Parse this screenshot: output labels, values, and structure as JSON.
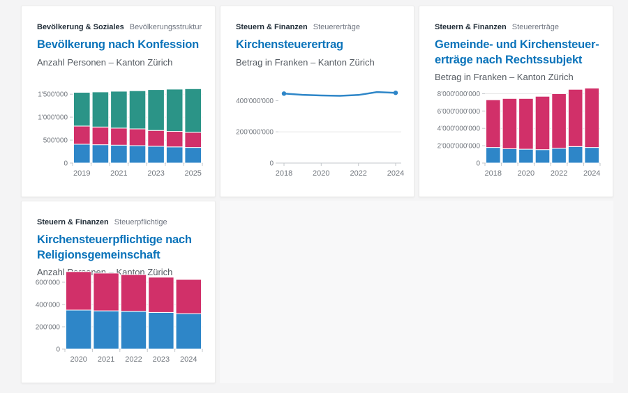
{
  "page": {
    "background": "#f4f4f5",
    "card_background": "#ffffff"
  },
  "colors": {
    "blue": "#2e86c8",
    "pink": "#d13069",
    "teal": "#2b9487",
    "title_blue": "#0a73ba",
    "category_text": "#232f3a",
    "muted_text": "#6f7580",
    "subtitle_text": "#545a61",
    "grid": "#e4e4e4",
    "axis": "#c3c7cb",
    "tick_text": "#71767d"
  },
  "cards": [
    {
      "category": "Bevölkerung & Soziales",
      "subcategory": "Bevölkerungsstruktur",
      "title_lines": [
        "Bevölkerung nach Konfession"
      ],
      "subtitle": "Anzahl Personen – Kanton Zürich"
    },
    {
      "category": "Steuern & Finanzen",
      "subcategory": "Steuererträge",
      "title_lines": [
        "Kirchensteuerertrag"
      ],
      "subtitle": "Betrag in Franken – Kanton Zürich"
    },
    {
      "category": "Steuern & Finanzen",
      "subcategory": "Steuererträge",
      "title_lines": [
        "Gemeinde- und Kirchensteuer-",
        "erträge nach Rechtssubjekt"
      ],
      "subtitle": "Betrag in Franken – Kanton Zürich"
    },
    {
      "category": "Steuern & Finanzen",
      "subcategory": "Steuerpflichtige",
      "title_lines": [
        "Kirchensteuerpflichtige nach",
        "Religionsgemeinschaft"
      ],
      "subtitle": "Anzahl Personen – Kanton Zürich"
    }
  ],
  "chart_data": [
    {
      "type": "bar",
      "stacked": true,
      "title": "Bevölkerung nach Konfession",
      "categories": [
        "2019",
        "2020",
        "2021",
        "2022",
        "2023",
        "2024",
        "2025"
      ],
      "x_ticks_shown": [
        "2019",
        "2021",
        "2023",
        "2025"
      ],
      "series": [
        {
          "name": "series_blue",
          "color": "blue",
          "values": [
            410000,
            400000,
            390000,
            378000,
            365000,
            352000,
            340000
          ]
        },
        {
          "name": "series_pink",
          "color": "pink",
          "values": [
            395000,
            385000,
            372000,
            365000,
            345000,
            338000,
            330000
          ]
        },
        {
          "name": "series_teal",
          "color": "teal",
          "values": [
            735000,
            765000,
            803000,
            832000,
            890000,
            920000,
            950000
          ]
        }
      ],
      "y_ticks": [
        {
          "v": 0,
          "label": "0",
          "grid": true
        },
        {
          "v": 500000,
          "label": "500'000",
          "grid": true
        },
        {
          "v": 1000000,
          "label": "1'000'000",
          "grid": true
        },
        {
          "v": 1500000,
          "label": "1'500'000",
          "grid": true
        }
      ],
      "ylim": [
        0,
        1700000
      ]
    },
    {
      "type": "line",
      "title": "Kirchensteuerertrag",
      "x": [
        "2018",
        "2019",
        "2020",
        "2021",
        "2022",
        "2023",
        "2024"
      ],
      "values": [
        445000000,
        437000000,
        433000000,
        431000000,
        436000000,
        455000000,
        450000000
      ],
      "series_color": "blue",
      "markers": "endpoints",
      "x_ticks_shown": [
        "2018",
        "2020",
        "2022",
        "2024"
      ],
      "y_ticks": [
        {
          "v": 0,
          "label": "0",
          "grid": true
        },
        {
          "v": 200000000,
          "label": "200'000'000",
          "grid": true
        },
        {
          "v": 400000000,
          "label": "400'000'000",
          "grid": false
        }
      ],
      "ylim": [
        0,
        500000000
      ]
    },
    {
      "type": "bar",
      "stacked": true,
      "title": "Gemeinde- und Kirchensteuererträge nach Rechtssubjekt",
      "categories": [
        "2018",
        "2019",
        "2020",
        "2021",
        "2022",
        "2023",
        "2024"
      ],
      "x_ticks_shown": [
        "2018",
        "2020",
        "2022",
        "2024"
      ],
      "series": [
        {
          "name": "series_blue",
          "color": "blue",
          "values": [
            1800000000,
            1650000000,
            1600000000,
            1550000000,
            1700000000,
            1900000000,
            1800000000
          ]
        },
        {
          "name": "series_pink",
          "color": "pink",
          "values": [
            5500000000,
            5800000000,
            5850000000,
            6150000000,
            6300000000,
            6600000000,
            6850000000
          ]
        }
      ],
      "y_ticks": [
        {
          "v": 0,
          "label": "0",
          "grid": true
        },
        {
          "v": 2000000000,
          "label": "2'000'000'000",
          "grid": true
        },
        {
          "v": 4000000000,
          "label": "4'000'000'000",
          "grid": true
        },
        {
          "v": 6000000000,
          "label": "6'000'000'000",
          "grid": true
        },
        {
          "v": 8000000000,
          "label": "8'000'000'000",
          "grid": true
        }
      ],
      "ylim": [
        0,
        9000000000
      ]
    },
    {
      "type": "bar",
      "stacked": true,
      "title": "Kirchensteuerpflichtige nach Religionsgemeinschaft",
      "categories": [
        "2020",
        "2021",
        "2022",
        "2023",
        "2024"
      ],
      "x_ticks_shown": [
        "2020",
        "2021",
        "2022",
        "2023",
        "2024"
      ],
      "series": [
        {
          "name": "series_blue",
          "color": "blue",
          "values": [
            350000,
            343000,
            339000,
            329000,
            318000
          ]
        },
        {
          "name": "series_pink",
          "color": "pink",
          "values": [
            345000,
            339000,
            329000,
            316000,
            307000
          ]
        }
      ],
      "y_ticks": [
        {
          "v": 0,
          "label": "0",
          "grid": true
        },
        {
          "v": 200000,
          "label": "200'000",
          "grid": true
        },
        {
          "v": 400000,
          "label": "400'000",
          "grid": true
        },
        {
          "v": 600000,
          "label": "600'000",
          "grid": true
        }
      ],
      "ylim": [
        0,
        700000
      ]
    }
  ]
}
